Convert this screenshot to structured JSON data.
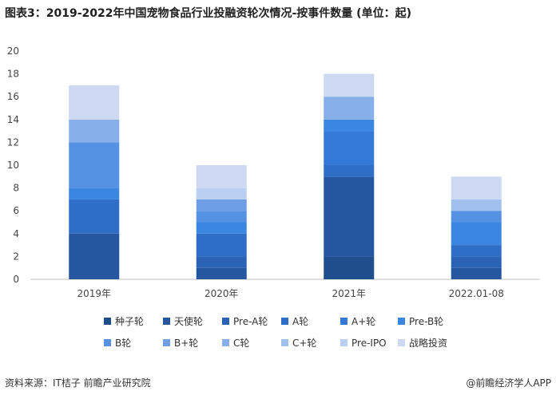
{
  "title": "图表3：2019-2022年中国宠物食品行业投融资轮次情况-按事件数量 (单位：起)",
  "footer": {
    "source": "资料来源：IT桔子 前瞻产业研究院",
    "brand": "@前瞻经济学人APP"
  },
  "chart_data": {
    "type": "bar",
    "stacked": true,
    "categories": [
      "2019年",
      "2020年",
      "2021年",
      "2022.01-08"
    ],
    "ylim": [
      0,
      20
    ],
    "yticks": [
      0,
      2,
      4,
      6,
      8,
      10,
      12,
      14,
      16,
      18,
      20
    ],
    "grid": false,
    "legend_position": "bottom",
    "series": [
      {
        "name": "种子轮",
        "color": "#1f4e8c",
        "values": [
          0,
          0,
          2,
          0
        ]
      },
      {
        "name": "天使轮",
        "color": "#2457a0",
        "values": [
          4,
          1,
          7,
          1
        ]
      },
      {
        "name": "Pre-A轮",
        "color": "#2a62b5",
        "values": [
          0,
          1,
          0,
          1
        ]
      },
      {
        "name": "A轮",
        "color": "#2f6ec6",
        "values": [
          3,
          2,
          1,
          1
        ]
      },
      {
        "name": "A+轮",
        "color": "#3479d6",
        "values": [
          0,
          0,
          3,
          0
        ]
      },
      {
        "name": "Pre-B轮",
        "color": "#3a86e0",
        "values": [
          1,
          1,
          1,
          2
        ]
      },
      {
        "name": "B轮",
        "color": "#5592e4",
        "values": [
          4,
          1,
          0,
          1
        ]
      },
      {
        "name": "B+轮",
        "color": "#6e9fe6",
        "values": [
          0,
          1,
          0,
          0
        ]
      },
      {
        "name": "C轮",
        "color": "#87afe9",
        "values": [
          2,
          0,
          2,
          0
        ]
      },
      {
        "name": "C+轮",
        "color": "#a0c0ee",
        "values": [
          0,
          0,
          0,
          1
        ]
      },
      {
        "name": "Pre-IPO",
        "color": "#b9d0f2",
        "values": [
          0,
          1,
          0,
          0
        ]
      },
      {
        "name": "战略投资",
        "color": "#cdd9f3",
        "values": [
          3,
          2,
          2,
          2
        ]
      }
    ]
  }
}
